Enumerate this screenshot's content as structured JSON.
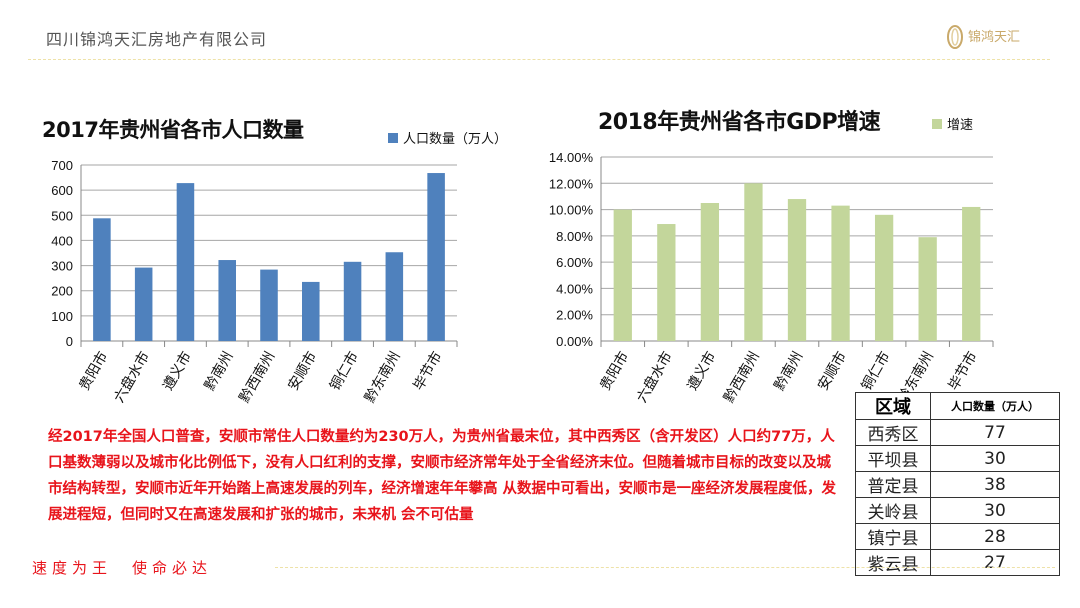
{
  "header": {
    "company": "四川锦鸿天汇房地产有限公司",
    "logo_text": "锦鸿天汇"
  },
  "colors": {
    "bar_population": "#4f81bd",
    "bar_gdp": "#c3d69b",
    "text_red": "#e8141b",
    "accent_gold": "#c9a96a"
  },
  "chart_data": [
    {
      "type": "bar",
      "title": "2017年贵州省各市人口数量",
      "legend": "人口数量（万人）",
      "legend_position": "top-right",
      "categories": [
        "贵阳市",
        "六盘水市",
        "遵义市",
        "黔南州",
        "黔西南州",
        "安顺市",
        "铜仁市",
        "黔东南州",
        "毕节市"
      ],
      "values": [
        488,
        292,
        628,
        322,
        284,
        235,
        315,
        353,
        668
      ],
      "yticks": [
        "0",
        "100",
        "200",
        "300",
        "400",
        "500",
        "600",
        "700"
      ],
      "ylim": [
        0,
        700
      ],
      "grid": true
    },
    {
      "type": "bar",
      "title": "2018年贵州省各市GDP增速",
      "legend": "增速",
      "legend_position": "top-right",
      "categories": [
        "贵阳市",
        "六盘水市",
        "遵义市",
        "黔西南州",
        "黔南州",
        "安顺市",
        "铜仁市",
        "黔东南州",
        "毕节市"
      ],
      "values": [
        10.0,
        8.9,
        10.5,
        12.0,
        10.8,
        10.3,
        9.6,
        7.9,
        10.2
      ],
      "yticks": [
        "0.00%",
        "2.00%",
        "4.00%",
        "6.00%",
        "8.00%",
        "10.00%",
        "12.00%",
        "14.00%"
      ],
      "ylim": [
        0,
        14
      ],
      "unit": "%",
      "grid": true
    }
  ],
  "table": {
    "headers": [
      "区域",
      "人口数量（万人）"
    ],
    "rows": [
      [
        "西秀区",
        "77"
      ],
      [
        "平坝县",
        "30"
      ],
      [
        "普定县",
        "38"
      ],
      [
        "关岭县",
        "30"
      ],
      [
        "镇宁县",
        "28"
      ],
      [
        "紫云县",
        "27"
      ]
    ]
  },
  "paragraph": "经2017年全国人口普查，安顺市常住人口数量约为230万人，为贵州省最末位，其中西秀区（含开发区）人口约77万，人口基数薄弱以及城市化比例低下，没有人口红利的支撑，安顺市经济常年处于全省经济末位。但随着城市目标的改变以及城市结构转型，安顺市近年开始踏上高速发展的列车，经济增速年年攀高 从数据中可看出，安顺市是一座经济发展程度低，发展进程短，但同时又在高速发展和扩张的城市，未来机 会不可估量",
  "slogan": "速度为王　使命必达"
}
